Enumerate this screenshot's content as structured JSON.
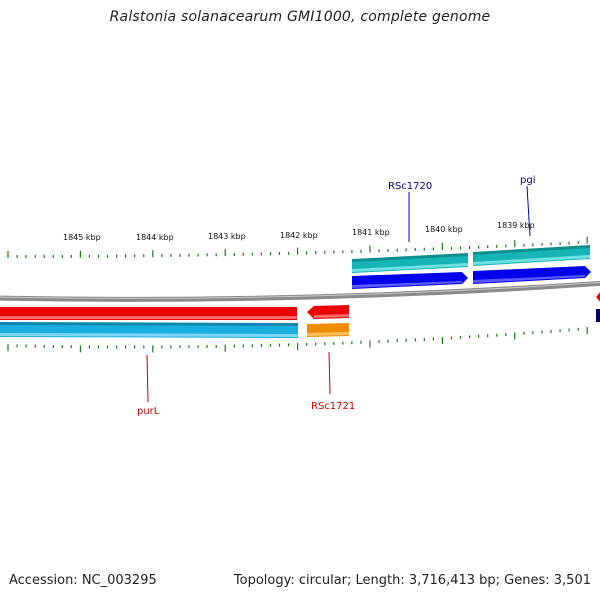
{
  "title": "Ralstonia solanacearum GMI1000, complete genome",
  "footer": {
    "accession": "Accession: NC_003295",
    "summary": "Topology: circular; Length: 3,716,413 bp; Genes: 3,501"
  },
  "colors": {
    "backbone": "#888888",
    "ticks": "#1a7a1a",
    "forward_cds": "#0000ee",
    "forward_gene": "#13b3b3",
    "reverse_cds": "#ee0000",
    "reverse_gene": "#1aaee0",
    "reverse_gene_alt": "#f08c00",
    "forward_label": "#00008b",
    "reverse_label": "#cc0000"
  },
  "scale_labels": [
    "1845 kbp",
    "1844 kbp",
    "1843 kbp",
    "1842 kbp",
    "1841 kbp",
    "1840 kbp",
    "1839 kbp"
  ],
  "features": {
    "forward": [
      {
        "name": "RSc1720",
        "label_color": "#00008b"
      },
      {
        "name": "pgi",
        "label_color": "#00008b"
      }
    ],
    "reverse": [
      {
        "name": "purL",
        "label_color": "#cc0000"
      },
      {
        "name": "RSc1721",
        "label_color": "#cc0000"
      }
    ]
  }
}
